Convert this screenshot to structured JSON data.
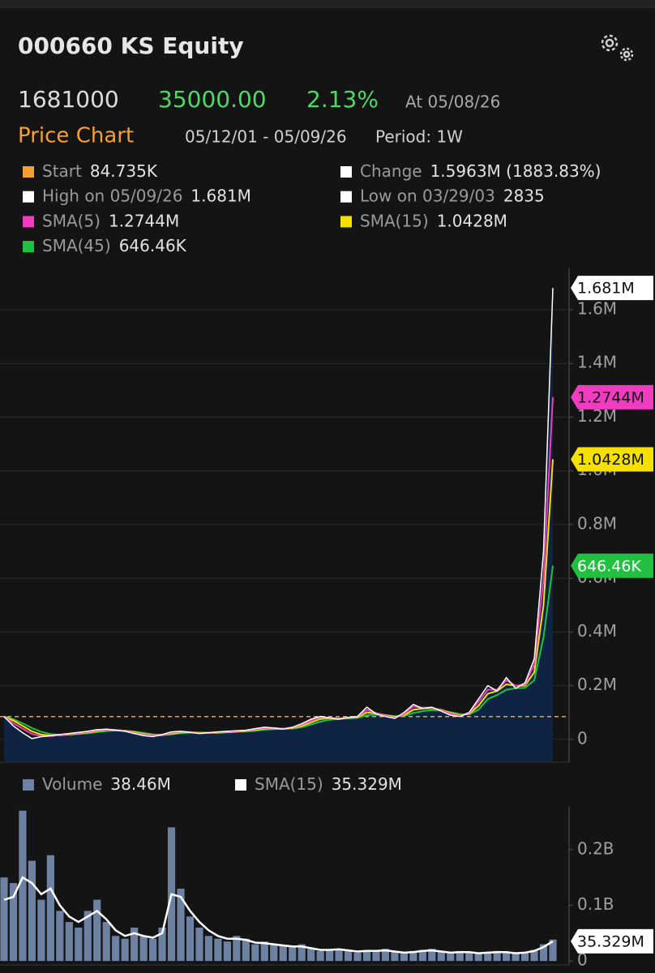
{
  "header": {
    "title": "000660 KS Equity",
    "price": "1681000",
    "change": "35000.00",
    "change_pct": "2.13%",
    "as_of": "At 05/08/26",
    "section": "Price Chart",
    "range": "05/12/01 - 05/09/26",
    "period": "Period: 1W"
  },
  "chart_data": [
    {
      "type": "line",
      "stats": [
        {
          "label": "Start",
          "value": "84.735K",
          "color": "#f5a030"
        },
        {
          "label": "Change",
          "value": "1.5963M (1883.83%)",
          "color": "#ffffff"
        },
        {
          "label": "High on 05/09/26",
          "value": "1.681M",
          "color": "#ffffff"
        },
        {
          "label": "Low on 03/29/03",
          "value": "2835",
          "color": "#ffffff"
        }
      ],
      "reference_line": 84735,
      "reference_color": "#f5a030",
      "ylim": [
        -85000,
        1757000
      ],
      "yticks": [
        0,
        {
          "value": 200000,
          "label": "0.2M"
        },
        {
          "value": 400000,
          "label": "0.4M"
        },
        {
          "value": 600000,
          "label": "0.6M"
        },
        {
          "value": 800000,
          "label": "0.8M"
        },
        {
          "value": 1000000,
          "label": "1.0M"
        },
        {
          "value": 1200000,
          "label": "1.2M"
        },
        {
          "value": 1400000,
          "label": "1.4M"
        },
        {
          "value": 1600000,
          "label": "1.6M"
        }
      ],
      "grid": true,
      "series": [
        {
          "name": "Price",
          "color": "#ffffff",
          "fill": "#0e2442",
          "last_label": "1.681M",
          "values": [
            84735,
            50000,
            25000,
            2835,
            10000,
            14000,
            18000,
            22000,
            26000,
            30000,
            36000,
            38000,
            34000,
            30000,
            22000,
            14000,
            10000,
            18000,
            28000,
            30000,
            26000,
            22000,
            25000,
            28000,
            30000,
            32000,
            34000,
            40000,
            45000,
            42000,
            38000,
            45000,
            58000,
            75000,
            85000,
            80000,
            75000,
            82000,
            85000,
            120000,
            95000,
            85000,
            78000,
            100000,
            130000,
            115000,
            120000,
            105000,
            90000,
            85000,
            100000,
            150000,
            200000,
            180000,
            230000,
            190000,
            210000,
            300000,
            700000,
            1681000
          ]
        },
        {
          "name": "SMA(5)",
          "color": "#f03cc0",
          "legend_value": "1.2744M",
          "last_label": "1.2744M",
          "values": [
            84735,
            60000,
            40000,
            20000,
            12000,
            12000,
            16000,
            20000,
            24000,
            28000,
            34000,
            37000,
            35000,
            31000,
            24000,
            17000,
            13000,
            16000,
            25000,
            29000,
            27000,
            23000,
            24000,
            27000,
            29000,
            31000,
            33000,
            38000,
            43000,
            42000,
            40000,
            44000,
            55000,
            70000,
            82000,
            80000,
            77000,
            81000,
            85000,
            110000,
            98000,
            88000,
            80000,
            95000,
            122000,
            118000,
            118000,
            108000,
            95000,
            88000,
            98000,
            140000,
            185000,
            185000,
            220000,
            200000,
            205000,
            280000,
            600000,
            1274400
          ]
        },
        {
          "name": "SMA(15)",
          "color": "#f5e000",
          "legend_value": "1.0428M",
          "last_label": "1.0428M",
          "values": [
            84735,
            70000,
            50000,
            30000,
            18000,
            14000,
            15000,
            18000,
            22000,
            26000,
            31000,
            35000,
            35000,
            32000,
            27000,
            20000,
            15000,
            15000,
            21000,
            26000,
            27000,
            25000,
            24000,
            25000,
            27000,
            29000,
            31000,
            35000,
            40000,
            41000,
            40000,
            42000,
            50000,
            63000,
            76000,
            79000,
            78000,
            80000,
            83000,
            100000,
            97000,
            90000,
            84000,
            90000,
            110000,
            115000,
            116000,
            110000,
            98000,
            90000,
            95000,
            125000,
            170000,
            180000,
            205000,
            200000,
            200000,
            250000,
            500000,
            1042800
          ]
        },
        {
          "name": "SMA(45)",
          "color": "#22c040",
          "legend_value": "646.46K",
          "last_label": "646.46K",
          "values": [
            84735,
            75000,
            60000,
            42000,
            28000,
            20000,
            17000,
            18000,
            20000,
            23000,
            27000,
            31000,
            33000,
            32000,
            29000,
            24000,
            19000,
            17000,
            19000,
            23000,
            25000,
            25000,
            25000,
            25000,
            26000,
            28000,
            30000,
            32000,
            36000,
            38000,
            39000,
            40000,
            45000,
            55000,
            66000,
            73000,
            76000,
            78000,
            80000,
            90000,
            92000,
            90000,
            86000,
            87000,
            98000,
            105000,
            109000,
            108000,
            101000,
            94000,
            93000,
            110000,
            150000,
            165000,
            185000,
            190000,
            192000,
            220000,
            380000,
            646460
          ]
        }
      ]
    },
    {
      "type": "bar",
      "ylim": [
        -7000000,
        277000000
      ],
      "yticks": [
        0,
        {
          "value": 100000000,
          "label": "0.1B"
        },
        {
          "value": 200000000,
          "label": "0.2B"
        }
      ],
      "series": [
        {
          "name": "Volume",
          "color": "#6d82a3",
          "legend_value": "38.46M",
          "values": [
            150000000,
            140000000,
            270000000,
            180000000,
            110000000,
            190000000,
            90000000,
            70000000,
            60000000,
            90000000,
            110000000,
            70000000,
            45000000,
            40000000,
            60000000,
            45000000,
            40000000,
            60000000,
            240000000,
            130000000,
            80000000,
            60000000,
            45000000,
            40000000,
            35000000,
            45000000,
            40000000,
            30000000,
            35000000,
            30000000,
            28000000,
            25000000,
            30000000,
            22000000,
            18000000,
            20000000,
            22000000,
            18000000,
            15000000,
            20000000,
            18000000,
            22000000,
            16000000,
            14000000,
            18000000,
            20000000,
            22000000,
            16000000,
            14000000,
            18000000,
            16000000,
            13000000,
            15000000,
            18000000,
            16000000,
            13000000,
            15000000,
            20000000,
            30000000,
            38460000
          ]
        },
        {
          "name": "SMA(15)",
          "color": "#ffffff",
          "legend_value": "35.329M",
          "last_label": "35.329M",
          "values": [
            110000000,
            115000000,
            150000000,
            140000000,
            120000000,
            130000000,
            100000000,
            80000000,
            70000000,
            80000000,
            90000000,
            75000000,
            55000000,
            45000000,
            50000000,
            45000000,
            42000000,
            50000000,
            120000000,
            115000000,
            90000000,
            70000000,
            55000000,
            45000000,
            40000000,
            40000000,
            38000000,
            33000000,
            32000000,
            30000000,
            28000000,
            26000000,
            26000000,
            23000000,
            20000000,
            20000000,
            21000000,
            19000000,
            17000000,
            18000000,
            18000000,
            19000000,
            17000000,
            15000000,
            16000000,
            18000000,
            19000000,
            17000000,
            15000000,
            16000000,
            16000000,
            14000000,
            15000000,
            16000000,
            16000000,
            14000000,
            15000000,
            18000000,
            25000000,
            35329000
          ]
        }
      ]
    }
  ]
}
